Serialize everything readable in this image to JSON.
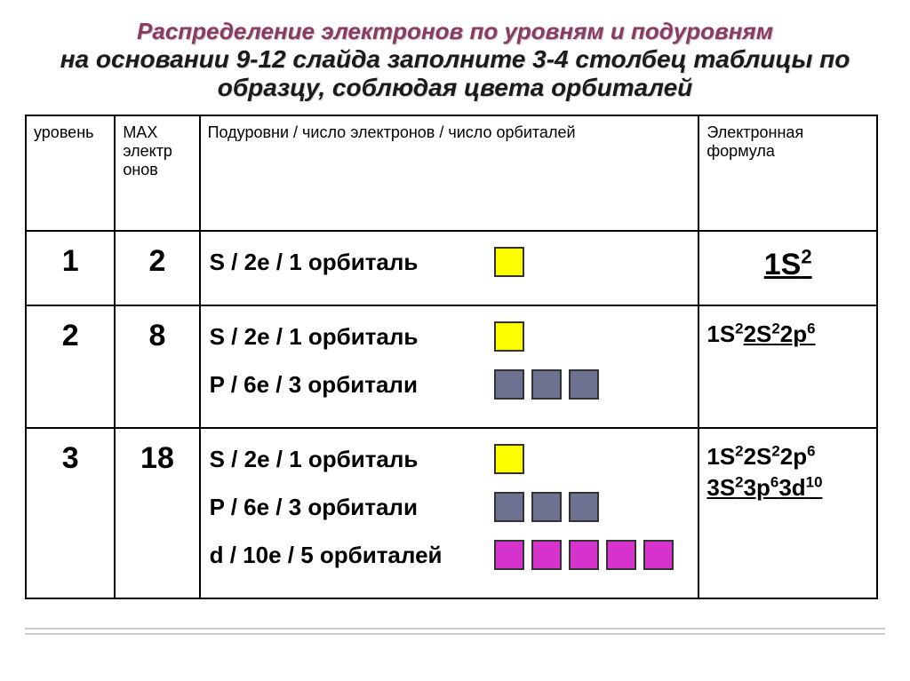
{
  "title": {
    "line1": "Распределение электронов по уровням и подуровням",
    "line2": "на основании 9-12 слайда заполните 3-4 столбец таблицы по",
    "line3": "образцу, соблюдая цвета орбиталей"
  },
  "headers": {
    "level": "уровень",
    "max": "MAX электр онов",
    "sub": "Подуровни / число электронов / число орбиталей",
    "formula": "Электронная формула"
  },
  "colors": {
    "s": "#ffff00",
    "p": "#6e7291",
    "d": "#d633cc",
    "border": "#333333"
  },
  "rows": [
    {
      "level": "1",
      "max": "2",
      "sublevels": [
        {
          "label": "S / 2e / 1 орбиталь",
          "count": 1,
          "orbital_type": "s"
        }
      ],
      "formula_lines": [
        [
          {
            "text": "1S",
            "sup": "2",
            "underline": true
          }
        ]
      ],
      "formula_big": true
    },
    {
      "level": "2",
      "max": "8",
      "sublevels": [
        {
          "label": "S /  2e / 1 орбиталь",
          "count": 1,
          "orbital_type": "s"
        },
        {
          "label": "P /  6e / 3 орбитали",
          "count": 3,
          "orbital_type": "p"
        }
      ],
      "formula_lines": [
        [
          {
            "text": "1S",
            "sup": "2",
            "underline": false
          },
          {
            "text": "2S",
            "sup": "2",
            "underline": true
          },
          {
            "text": "2p",
            "sup": "6",
            "underline": true
          }
        ]
      ]
    },
    {
      "level": "3",
      "max": "18",
      "sublevels": [
        {
          "label": "S /  2e / 1 орбиталь",
          "count": 1,
          "orbital_type": "s"
        },
        {
          "label": "P /  6e / 3 орбитали",
          "count": 3,
          "orbital_type": "p"
        },
        {
          "label": "d /  10e / 5 орбиталей",
          "count": 5,
          "orbital_type": "d"
        }
      ],
      "formula_lines": [
        [
          {
            "text": "1S",
            "sup": "2",
            "underline": false
          },
          {
            "text": "2S",
            "sup": "2",
            "underline": false
          },
          {
            "text": "2p",
            "sup": "6",
            "underline": false
          }
        ],
        [
          {
            "text": "3S",
            "sup": "2",
            "underline": true
          },
          {
            "text": "3p",
            "sup": "6",
            "underline": true
          },
          {
            "text": "3d",
            "sup": "10",
            "underline": true
          }
        ]
      ]
    }
  ]
}
